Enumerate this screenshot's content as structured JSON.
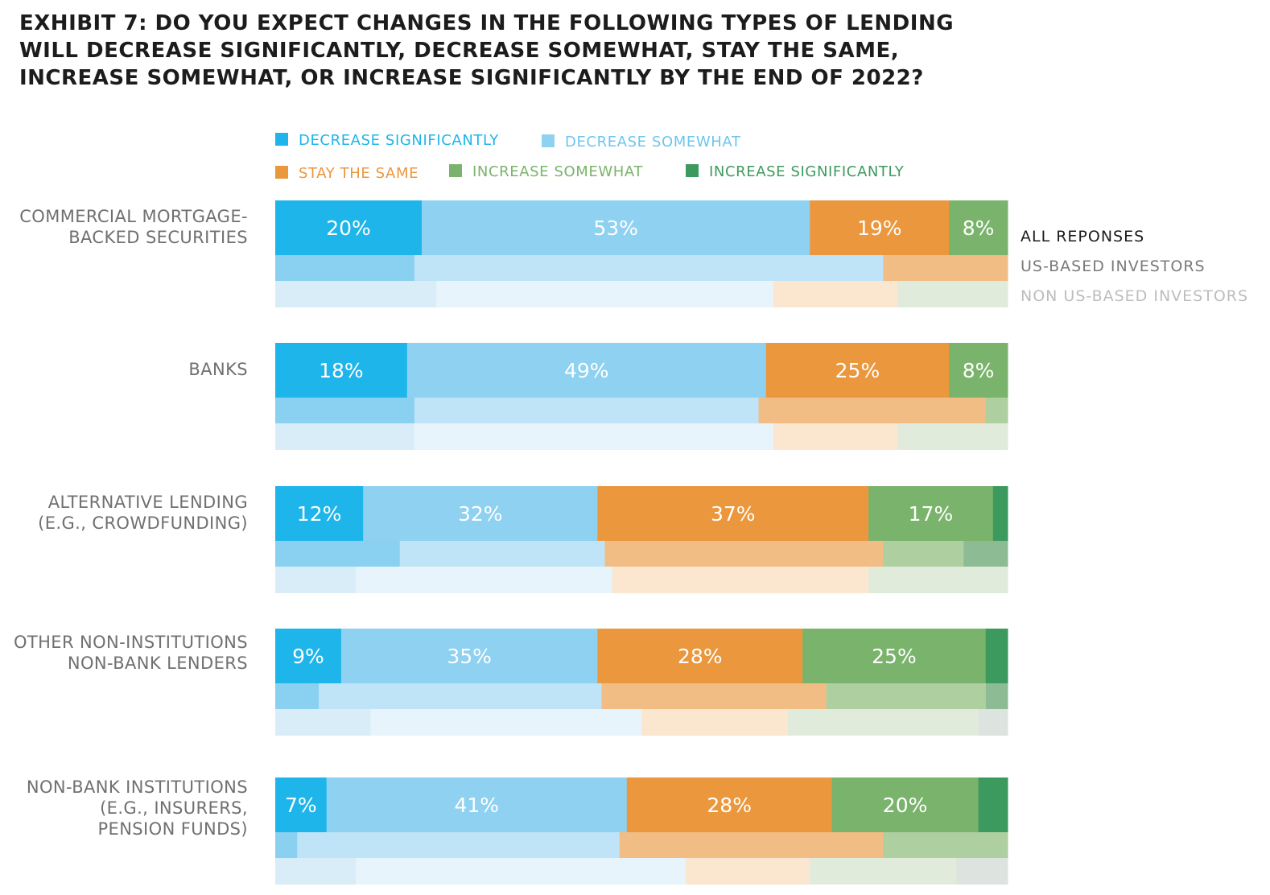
{
  "chart_data": {
    "type": "bar",
    "orientation": "horizontal",
    "stacked": "100%",
    "title_lines": [
      "EXHIBIT 7: DO YOU EXPECT CHANGES IN THE FOLLOWING TYPES OF LENDING",
      "WILL DECREASE SIGNIFICANTLY, DECREASE SOMEWHAT, STAY THE SAME,",
      "INCREASE SOMEWHAT, OR INCREASE SIGNIFICANTLY BY THE END OF 2022?"
    ],
    "legend": [
      {
        "label": "DECREASE SIGNIFICANTLY",
        "color": "#1eb5ea"
      },
      {
        "label": "DECREASE SOMEWHAT",
        "color": "#8fd1f1"
      },
      {
        "label": "STAY THE SAME",
        "color": "#eb973d"
      },
      {
        "label": "INCREASE SOMEWHAT",
        "color": "#7ab36b"
      },
      {
        "label": "INCREASE SIGNIFICANTLY",
        "color": "#3d9a5e"
      }
    ],
    "respondent_groups": [
      {
        "label": "ALL REPONSES",
        "color": "#1c1c1c"
      },
      {
        "label": "US-BASED INVESTORS",
        "color": "#7a7a7a"
      },
      {
        "label": "NON US-BASED INVESTORS",
        "color": "#bdbdbd"
      }
    ],
    "group_colors": [
      [
        "#1eb5ea",
        "#8fd1f1",
        "#eb973d",
        "#7ab36b",
        "#3d9a5e"
      ],
      [
        "#89d0f1",
        "#bfe4f7",
        "#f2bd84",
        "#aecf9f",
        "#8cbb94"
      ],
      [
        "#d8edf8",
        "#e8f4fb",
        "#fbe6cf",
        "#e1ebdc",
        "#dde3de"
      ]
    ],
    "xlim": [
      0,
      100
    ],
    "categories": [
      {
        "label_lines": [
          "COMMERCIAL MORTGAGE-",
          "BACKED SECURITIES"
        ],
        "groups": [
          {
            "values": [
              20,
              53,
              19,
              8,
              0
            ],
            "labels": [
              "20%",
              "53%",
              "19%",
              "8%",
              ""
            ]
          },
          {
            "values": [
              19,
              64,
              17,
              0,
              0
            ]
          },
          {
            "values": [
              22,
              46,
              17,
              15,
              0
            ]
          }
        ]
      },
      {
        "label_lines": [
          "BANKS"
        ],
        "groups": [
          {
            "values": [
              18,
              49,
              25,
              8,
              0
            ],
            "labels": [
              "18%",
              "49%",
              "25%",
              "8%",
              ""
            ]
          },
          {
            "values": [
              19,
              47,
              31,
              3,
              0
            ]
          },
          {
            "values": [
              19,
              49,
              17,
              15,
              0
            ]
          }
        ]
      },
      {
        "label_lines": [
          "ALTERNATIVE LENDING",
          "(E.G., CROWDFUNDING)"
        ],
        "groups": [
          {
            "values": [
              12,
              32,
              37,
              17,
              2
            ],
            "labels": [
              "12%",
              "32%",
              "37%",
              "17%",
              ""
            ]
          },
          {
            "values": [
              17,
              28,
              38,
              11,
              6
            ]
          },
          {
            "values": [
              11,
              35,
              35,
              19,
              0
            ]
          }
        ]
      },
      {
        "label_lines": [
          "OTHER NON-INSTITUTIONS",
          "NON-BANK LENDERS"
        ],
        "groups": [
          {
            "values": [
              9,
              35,
              28,
              25,
              3
            ],
            "labels": [
              "9%",
              "35%",
              "28%",
              "25%",
              ""
            ]
          },
          {
            "values": [
              6,
              39,
              31,
              22,
              3
            ]
          },
          {
            "values": [
              13,
              37,
              20,
              26,
              4
            ]
          }
        ]
      },
      {
        "label_lines": [
          "NON-BANK INSTITUTIONS",
          "(E.G., INSURERS,",
          "PENSION FUNDS)"
        ],
        "groups": [
          {
            "values": [
              7,
              41,
              28,
              20,
              4
            ],
            "labels": [
              "7%",
              "41%",
              "28%",
              "20%",
              ""
            ]
          },
          {
            "values": [
              3,
              44,
              36,
              17,
              0
            ]
          },
          {
            "values": [
              11,
              45,
              17,
              20,
              7
            ]
          }
        ]
      }
    ]
  }
}
